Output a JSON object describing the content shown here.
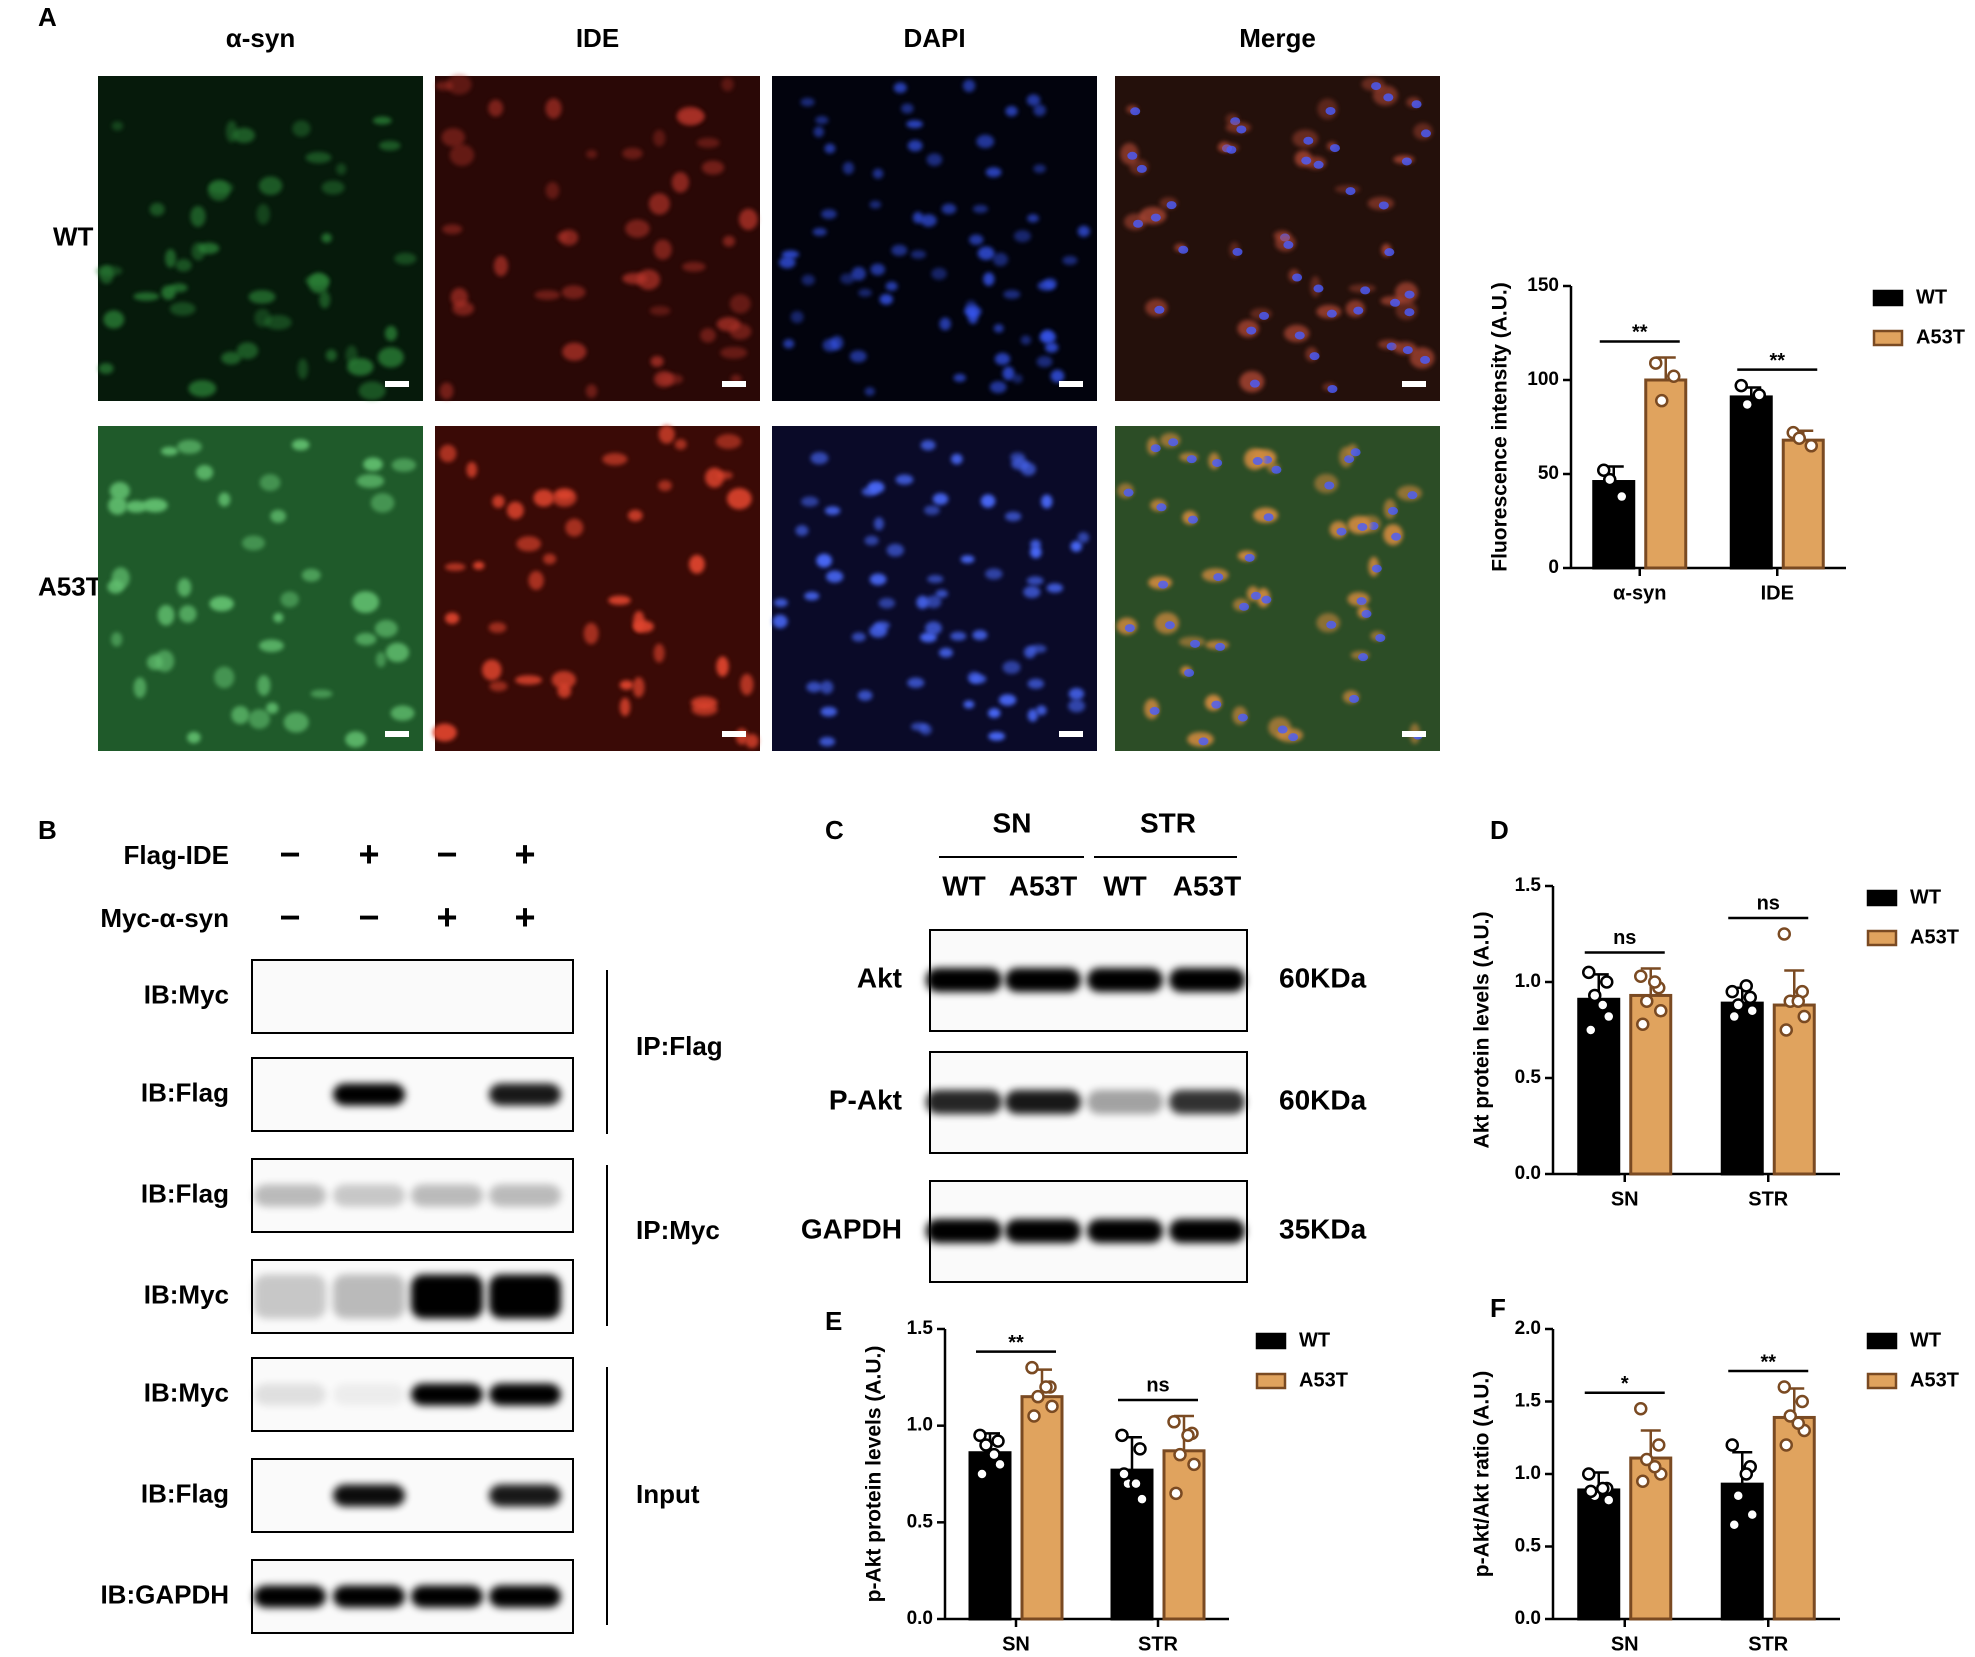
{
  "panel_labels": [
    "A",
    "B",
    "C",
    "D",
    "E",
    "F"
  ],
  "microscopy": {
    "columns": [
      "α-syn",
      "IDE",
      "DAPI",
      "Merge"
    ],
    "rows": [
      "WT",
      "A53T"
    ]
  },
  "blot_b": {
    "treatments": [
      {
        "name": "Flag-IDE",
        "signs": [
          "−",
          "+",
          "−",
          "+"
        ]
      },
      {
        "name": "Myc-α-syn",
        "signs": [
          "−",
          "−",
          "+",
          "+"
        ]
      }
    ],
    "rows": [
      "IB:Myc",
      "IB:Flag",
      "IB:Flag",
      "IB:Myc",
      "IB:Myc",
      "IB:Flag",
      "IB:GAPDH"
    ],
    "groups": [
      "IP:Flag",
      "IP:Myc",
      "Input"
    ]
  },
  "blot_c": {
    "tissues": [
      "SN",
      "STR"
    ],
    "genotypes": [
      "WT",
      "A53T",
      "WT",
      "A53T"
    ],
    "rows": [
      {
        "label": "Akt",
        "size": "60KDa"
      },
      {
        "label": "P-Akt",
        "size": "60KDa"
      },
      {
        "label": "GAPDH",
        "size": "35KDa"
      }
    ]
  },
  "chart_data": [
    {
      "type": "bar",
      "ylabel": "Fluorescence intensity  (A.U.)",
      "categories": [
        "α-syn",
        "IDE"
      ],
      "series": [
        {
          "name": "WT",
          "color": "#000000",
          "edgecolor": "#000000",
          "values": [
            46,
            91
          ],
          "errors": [
            8,
            5
          ],
          "points": [
            [
              52,
              38,
              47
            ],
            [
              97,
              92,
              87
            ]
          ]
        },
        {
          "name": "A53T",
          "color": "#e0a35e",
          "edgecolor": "#7a4a22",
          "values": [
            100,
            68
          ],
          "errors": [
            12,
            5
          ],
          "points": [
            [
              109,
              102,
              89
            ],
            [
              72,
              65,
              69
            ]
          ]
        }
      ],
      "significance": [
        "**",
        "**"
      ],
      "ylim": [
        0,
        150
      ],
      "yticks": [
        0,
        50,
        100,
        150
      ],
      "legend": "right"
    },
    {
      "type": "bar",
      "ylabel": "Akt protein levels  (A.U.)",
      "categories": [
        "SN",
        "STR"
      ],
      "series": [
        {
          "name": "WT",
          "color": "#000000",
          "edgecolor": "#000000",
          "values": [
            0.91,
            0.89
          ],
          "errors": [
            0.13,
            0.08
          ],
          "points": [
            [
              1.05,
              1.0,
              0.93,
              0.82,
              0.75,
              0.88
            ],
            [
              0.95,
              0.92,
              0.88,
              0.85,
              0.82,
              0.98
            ]
          ]
        },
        {
          "name": "A53T",
          "color": "#e0a35e",
          "edgecolor": "#7a4a22",
          "values": [
            0.93,
            0.88
          ],
          "errors": [
            0.14,
            0.18
          ],
          "points": [
            [
              1.03,
              0.97,
              0.9,
              0.85,
              0.78,
              1.0
            ],
            [
              1.25,
              0.95,
              0.9,
              0.82,
              0.75,
              0.9
            ]
          ]
        }
      ],
      "significance": [
        "ns",
        "ns"
      ],
      "ylim": [
        0,
        1.5
      ],
      "yticks": [
        {
          "value": 0,
          "label": "0.0"
        },
        0.5,
        {
          "value": 1,
          "label": "1.0"
        },
        1.5
      ],
      "legend": "right"
    },
    {
      "type": "bar",
      "ylabel": "p-Akt protein levels  (A.U.)",
      "categories": [
        "SN",
        "STR"
      ],
      "series": [
        {
          "name": "WT",
          "color": "#000000",
          "edgecolor": "#000000",
          "values": [
            0.86,
            0.77
          ],
          "errors": [
            0.1,
            0.17
          ],
          "points": [
            [
              0.95,
              0.92,
              0.9,
              0.8,
              0.75,
              0.85
            ],
            [
              0.95,
              0.88,
              0.7,
              0.62,
              0.75,
              0.7
            ]
          ]
        },
        {
          "name": "A53T",
          "color": "#e0a35e",
          "edgecolor": "#7a4a22",
          "values": [
            1.15,
            0.87
          ],
          "errors": [
            0.14,
            0.18
          ],
          "points": [
            [
              1.3,
              1.2,
              1.15,
              1.1,
              1.05,
              1.2
            ],
            [
              1.02,
              0.96,
              0.85,
              0.8,
              0.65,
              0.95
            ]
          ]
        }
      ],
      "significance": [
        "**",
        "ns"
      ],
      "ylim": [
        0,
        1.5
      ],
      "yticks": [
        {
          "value": 0,
          "label": "0.0"
        },
        0.5,
        {
          "value": 1,
          "label": "1.0"
        },
        1.5
      ],
      "legend": "right"
    },
    {
      "type": "bar",
      "ylabel": "p-Akt/Akt ratio  (A.U.)",
      "categories": [
        "SN",
        "STR"
      ],
      "series": [
        {
          "name": "WT",
          "color": "#000000",
          "edgecolor": "#000000",
          "values": [
            0.89,
            0.93
          ],
          "errors": [
            0.12,
            0.22
          ],
          "points": [
            [
              1.0,
              0.9,
              0.85,
              0.82,
              0.88,
              0.9
            ],
            [
              1.2,
              1.05,
              0.85,
              0.72,
              0.65,
              1.0
            ]
          ]
        },
        {
          "name": "A53T",
          "color": "#e0a35e",
          "edgecolor": "#7a4a22",
          "values": [
            1.11,
            1.39
          ],
          "errors": [
            0.19,
            0.2
          ],
          "points": [
            [
              1.45,
              1.2,
              1.1,
              1.0,
              0.95,
              1.05
            ],
            [
              1.6,
              1.5,
              1.4,
              1.3,
              1.2,
              1.35
            ]
          ]
        }
      ],
      "significance": [
        "*",
        "**"
      ],
      "ylim": [
        0,
        2
      ],
      "yticks": [
        {
          "value": 0,
          "label": "0.0"
        },
        0.5,
        {
          "value": 1,
          "label": "1.0"
        },
        1.5,
        {
          "value": 2,
          "label": "2.0"
        }
      ],
      "legend": "right"
    }
  ]
}
